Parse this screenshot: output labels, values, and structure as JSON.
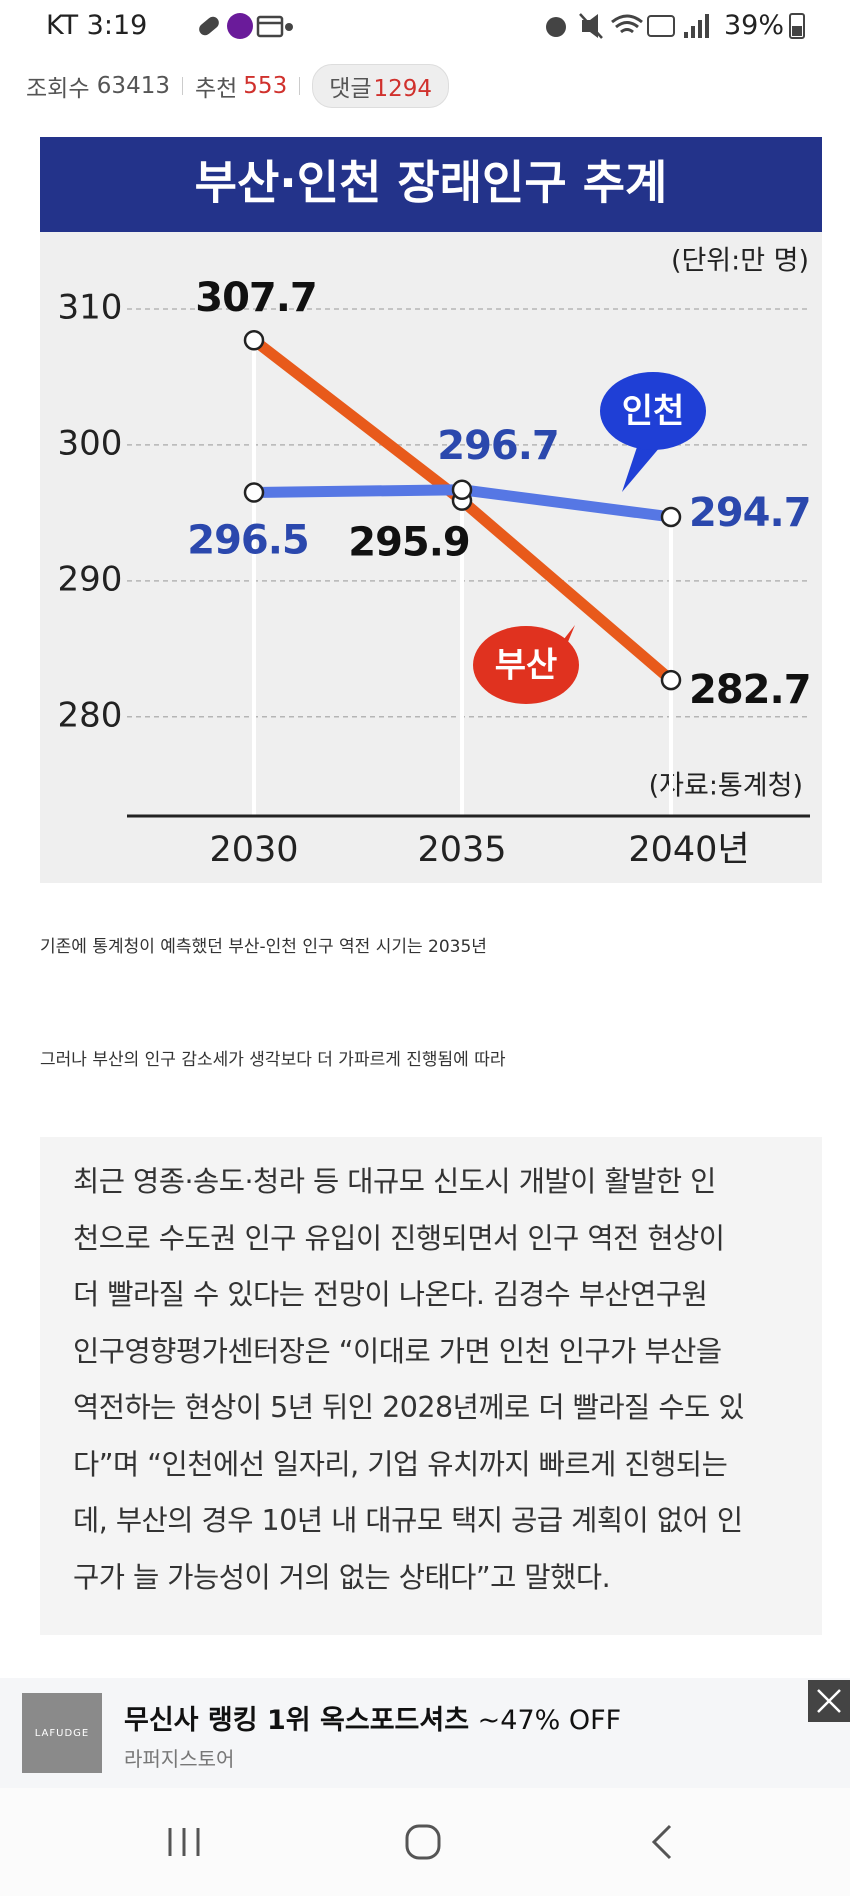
{
  "status_bar": {
    "carrier_time": "KT 3:19",
    "battery": "39%"
  },
  "stats": {
    "views": {
      "label": "조회수",
      "value": 63413
    },
    "likes": {
      "label": "추천",
      "value": 553
    },
    "comments": {
      "label": "댓글",
      "value": 1294
    }
  },
  "chart_data": {
    "type": "line",
    "title": "부산·인천 장래인구 추계",
    "unit_note": "(단위:만 명)",
    "source": "(자료:통계청)",
    "categories": [
      "2030",
      "2035",
      "2040년"
    ],
    "series": [
      {
        "name": "부산",
        "color": "#e85a1b",
        "values": [
          307.7,
          295.9,
          282.7
        ]
      },
      {
        "name": "인천",
        "color": "#5677e4",
        "values": [
          296.5,
          296.7,
          294.7
        ]
      }
    ],
    "ylim": [
      272.7,
      315
    ],
    "yticks": [
      280,
      290,
      300,
      310
    ],
    "grid": true
  },
  "captions": [
    "기존에 통계청이 예측했던 부산-인천 인구 역전 시기는 2035년",
    "그러나 부산의 인구 감소세가 생각보다 더 가파르게 진행됨에 따라"
  ],
  "quote": {
    "lines": [
      "최근 영종·송도·청라 등 대규모 신도시 개발이 활발한 인",
      "천으로 수도권 인구 유입이 진행되면서 인구 역전 현상이",
      "더 빨라질 수 있다는 전망이 나온다. 김경수 부산연구원",
      "인구영향평가센터장은 “이대로 가면 인천 인구가 부산을",
      "역전하는 현상이 5년 뒤인 2028년께로 더 빨라질 수도 있",
      "다”며 “인천에선 일자리, 기업 유치까지 빠르게 진행되는",
      "데, 부산의 경우 10년 내 대규모 택지 공급 계획이 없어 인",
      "구가 늘 가능성이 거의 없는 상태다”고 말했다."
    ]
  },
  "ad": {
    "logo": "LAFUDGE",
    "title": "무신사 랭킹 1위 옥스포드셔츠",
    "discount": "~47% OFF",
    "advertiser": "라퍼지스토어"
  }
}
